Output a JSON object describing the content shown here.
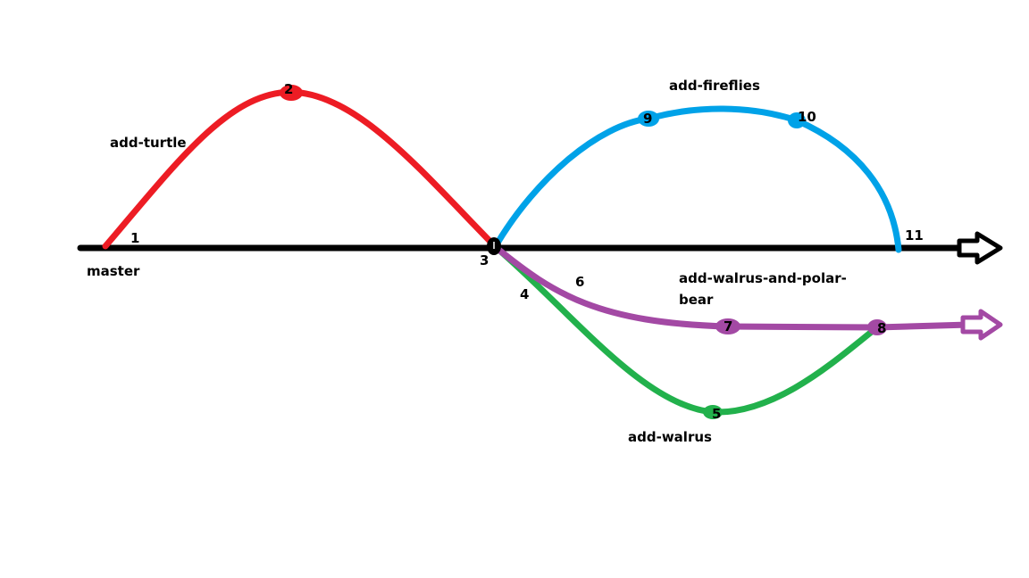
{
  "colors": {
    "master": "#000000",
    "add_turtle": "#ed1c24",
    "add_fireflies": "#00a2e8",
    "add_walrus": "#22b14c",
    "add_walrus_and_polar_bear": "#a349a4"
  },
  "branches": {
    "master": "master",
    "add_turtle": "add-turtle",
    "add_fireflies": "add-fireflies",
    "add_walrus_and_polar_bear_line1": "add-walrus-and-polar-",
    "add_walrus_and_polar_bear_line2": "bear",
    "add_walrus": "add-walrus"
  },
  "commits": {
    "c1": "1",
    "c2": "2",
    "c3": "3",
    "c4": "4",
    "c5": "5",
    "c6": "6",
    "c7": "7",
    "c8": "8",
    "c9": "9",
    "c10": "10",
    "c11": "11"
  }
}
